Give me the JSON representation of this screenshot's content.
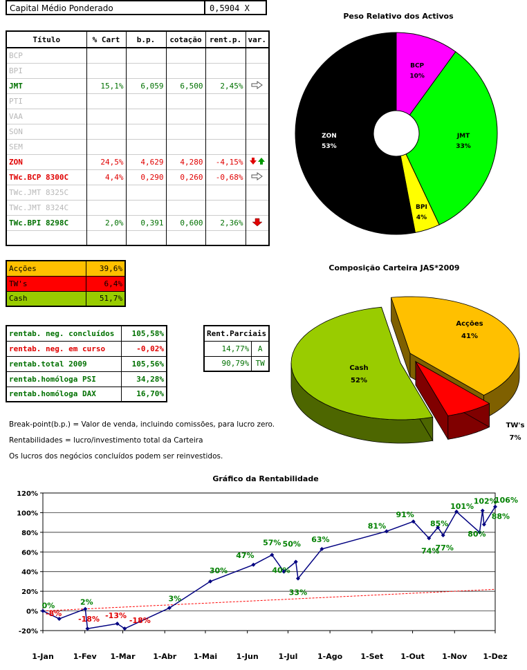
{
  "capital": {
    "label": "Capital Médio Ponderado",
    "value": "0,5904 X"
  },
  "holdings": {
    "headers": [
      "Título",
      "% Cart",
      "b.p.",
      "cotação",
      "rent.p.",
      "var."
    ],
    "rows": [
      {
        "name": "BCP",
        "cart": "",
        "bp": "",
        "cot": "",
        "rent": "",
        "var": "",
        "cls": "inactive"
      },
      {
        "name": "BPI",
        "cart": "",
        "bp": "",
        "cot": "",
        "rent": "",
        "var": "",
        "cls": "inactive"
      },
      {
        "name": "JMT",
        "cart": "15,1%",
        "bp": "6,059",
        "cot": "6,500",
        "rent": "2,45%",
        "var": "arrow-right-icon",
        "cls": "green"
      },
      {
        "name": "PTI",
        "cart": "",
        "bp": "",
        "cot": "",
        "rent": "",
        "var": "",
        "cls": "inactive"
      },
      {
        "name": "VAA",
        "cart": "",
        "bp": "",
        "cot": "",
        "rent": "",
        "var": "",
        "cls": "inactive"
      },
      {
        "name": "SON",
        "cart": "",
        "bp": "",
        "cot": "",
        "rent": "",
        "var": "",
        "cls": "inactive"
      },
      {
        "name": "SEM",
        "cart": "",
        "bp": "",
        "cot": "",
        "rent": "",
        "var": "",
        "cls": "inactive"
      },
      {
        "name": "ZON",
        "cart": "24,5%",
        "bp": "4,629",
        "cot": "4,280",
        "rent": "-4,15%",
        "var": "arrow-down-up-icon",
        "cls": "red"
      },
      {
        "name": "TWc.BCP 8300C",
        "cart": "4,4%",
        "bp": "0,290",
        "cot": "0,260",
        "rent": "-0,68%",
        "var": "arrow-right-icon",
        "cls": "red"
      },
      {
        "name": "TWc.JMT 8325C",
        "cart": "",
        "bp": "",
        "cot": "",
        "rent": "",
        "var": "",
        "cls": "inactive"
      },
      {
        "name": "TWc.JMT 8324C",
        "cart": "",
        "bp": "",
        "cot": "",
        "rent": "",
        "var": "",
        "cls": "inactive"
      },
      {
        "name": "TWc.BPI 8298C",
        "cart": "2,0%",
        "bp": "0,391",
        "cot": "0,600",
        "rent": "2,36%",
        "var": "arrow-down-icon",
        "cls": "green"
      },
      {
        "name": "",
        "cart": "",
        "bp": "",
        "cot": "",
        "rent": "",
        "var": "",
        "cls": ""
      }
    ]
  },
  "composition": [
    {
      "label": "Acções",
      "value": "39,6%",
      "bg": "#ffc000",
      "fg": "#000000"
    },
    {
      "label": "TW's",
      "value": "6,4%",
      "bg": "#ff0000",
      "fg": "#000000"
    },
    {
      "label": "Cash",
      "value": "51,7%",
      "bg": "#99cc00",
      "fg": "#000000"
    }
  ],
  "rentab": [
    {
      "label": "rentab. neg. concluídos",
      "value": "105,58%",
      "color": "#007000"
    },
    {
      "label": "rentab. neg. em curso",
      "value": "-0,02%",
      "color": "#e00000"
    },
    {
      "label": "rentab.total 2009",
      "value": "105,56%",
      "color": "#007000"
    },
    {
      "label": "rentab.homóloga PSI",
      "value": "34,28%",
      "color": "#007000"
    },
    {
      "label": "rentab.homóloga DAX",
      "value": "16,70%",
      "color": "#007000"
    }
  ],
  "parciais": {
    "header": "Rent.Parciais",
    "rows": [
      {
        "value": "14,77%",
        "tag": "A"
      },
      {
        "value": "90,79%",
        "tag": "TW"
      }
    ]
  },
  "notes": [
    "Break-point(b.p.) = Valor de venda, incluindo comissões, para lucro zero.",
    "Rentabilidades = lucro/investimento total da Carteira",
    "Os lucros dos negócios concluídos podem ser reinvestidos."
  ],
  "chart_data": [
    {
      "type": "pie",
      "title": "Peso Relativo dos Activos",
      "donut": true,
      "categories": [
        "BCP",
        "JMT",
        "BPI",
        "ZON"
      ],
      "labels": [
        "10%",
        "33%",
        "4%",
        "53%"
      ],
      "values": [
        10,
        33,
        4,
        53
      ],
      "colors": [
        "#ff00ff",
        "#00ff00",
        "#ffff00",
        "#000000"
      ]
    },
    {
      "type": "pie",
      "title": "Composição Carteira JAS*2009",
      "style": "3d-exploded",
      "categories": [
        "Acções",
        "TW's",
        "Cash"
      ],
      "labels": [
        "41%",
        "7%",
        "52%"
      ],
      "values": [
        41,
        7,
        52
      ],
      "colors": [
        "#ffc000",
        "#ff0000",
        "#99cc00"
      ]
    },
    {
      "type": "line",
      "title": "Gráfico da Rentabilidade",
      "ylim": [
        -20,
        120
      ],
      "yticks": [
        "120%",
        "100%",
        "80%",
        "60%",
        "40%",
        "20%",
        "0%",
        "-20%"
      ],
      "xticks": [
        "1-Jan",
        "1-Fev",
        "1-Mar",
        "1-Abr",
        "1-Mai",
        "1-Jun",
        "1-Jul",
        "1-Ago",
        "1-Set",
        "1-Out",
        "1-Nov",
        "1-Dez"
      ],
      "series": [
        {
          "color": "#000080",
          "points": [
            {
              "d": 0,
              "y": 0,
              "label": "0%"
            },
            {
              "d": 22,
              "y": -8,
              "label": "-8%"
            },
            {
              "d": 57,
              "y": 2,
              "label": "2%"
            },
            {
              "d": 60,
              "y": -18,
              "label": "-18%"
            },
            {
              "d": 100,
              "y": -13,
              "label": "-13%"
            },
            {
              "d": 110,
              "y": -18,
              "label": "-18%"
            },
            {
              "d": 170,
              "y": 3,
              "label": "3%"
            },
            {
              "d": 225,
              "y": 30,
              "label": "30%"
            },
            {
              "d": 283,
              "y": 47,
              "label": "47%"
            },
            {
              "d": 308,
              "y": 57,
              "label": "57%"
            },
            {
              "d": 324,
              "y": 40,
              "label": "40%"
            },
            {
              "d": 340,
              "y": 50,
              "label": "50%"
            },
            {
              "d": 343,
              "y": 33,
              "label": "33%"
            },
            {
              "d": 375,
              "y": 63,
              "label": "63%"
            },
            {
              "d": 462,
              "y": 81,
              "label": "81%"
            },
            {
              "d": 498,
              "y": 91,
              "label": "91%"
            },
            {
              "d": 519,
              "y": 74,
              "label": "74%"
            },
            {
              "d": 531,
              "y": 85,
              "label": "85%"
            },
            {
              "d": 538,
              "y": 77,
              "label": "77%"
            },
            {
              "d": 556,
              "y": 101,
              "label": "101%"
            },
            {
              "d": 587,
              "y": 80,
              "label": "80%"
            },
            {
              "d": 591,
              "y": 102,
              "label": "102%"
            },
            {
              "d": 593,
              "y": 88,
              "label": "88%"
            },
            {
              "d": 608,
              "y": 106,
              "label": "106%"
            }
          ]
        },
        {
          "color": "#ff0000",
          "dashed": true,
          "trend": true,
          "points": [
            {
              "d": 0,
              "y": 0
            },
            {
              "d": 334,
              "y": 22
            }
          ]
        }
      ]
    }
  ]
}
